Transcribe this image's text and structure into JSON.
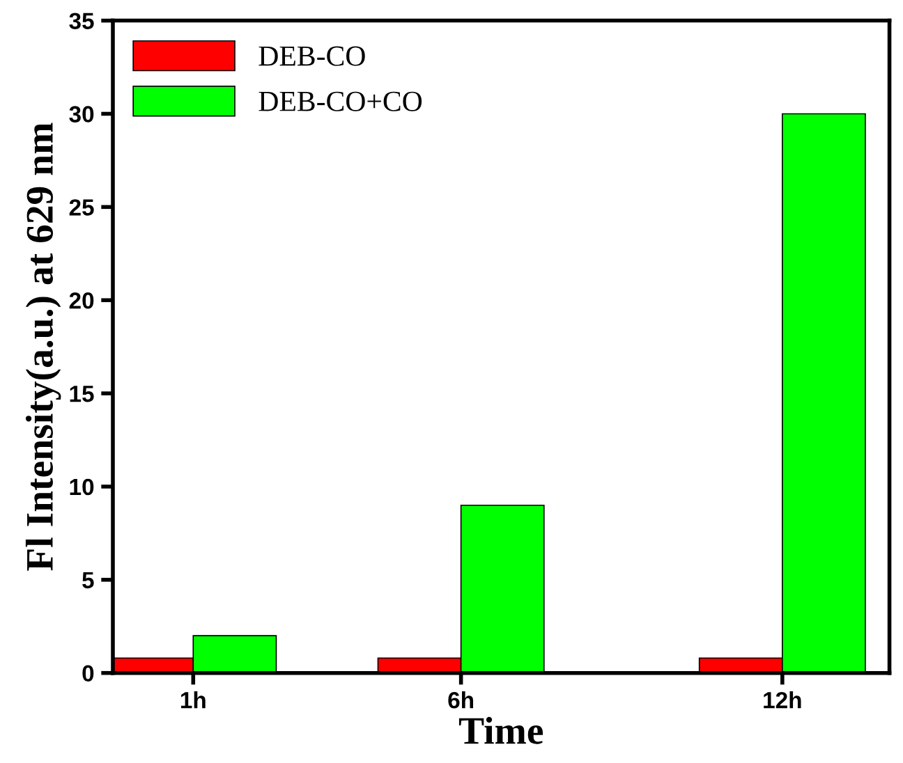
{
  "chart_data": {
    "type": "bar",
    "xlabel": "Time",
    "ylabel": "Fl Intensity(a.u.) at 629 nm",
    "x": [
      1,
      6,
      12
    ],
    "series": [
      {
        "name": "DEB-CO",
        "color": "#ff0000",
        "values": [
          0.8,
          0.8,
          0.8
        ]
      },
      {
        "name": "DEB-CO+CO",
        "color": "#00ff00",
        "values": [
          2,
          9,
          30
        ]
      }
    ],
    "xlim": [
      -0.5,
      14
    ],
    "xticks": [
      {
        "value": 1,
        "label": "1h"
      },
      {
        "value": 6,
        "label": "6h"
      },
      {
        "value": 12,
        "label": "12h"
      }
    ],
    "ylim": [
      0,
      35
    ],
    "yticks": [
      0,
      5,
      10,
      15,
      20,
      25,
      30,
      35
    ],
    "grid": false,
    "legend": "top left"
  }
}
